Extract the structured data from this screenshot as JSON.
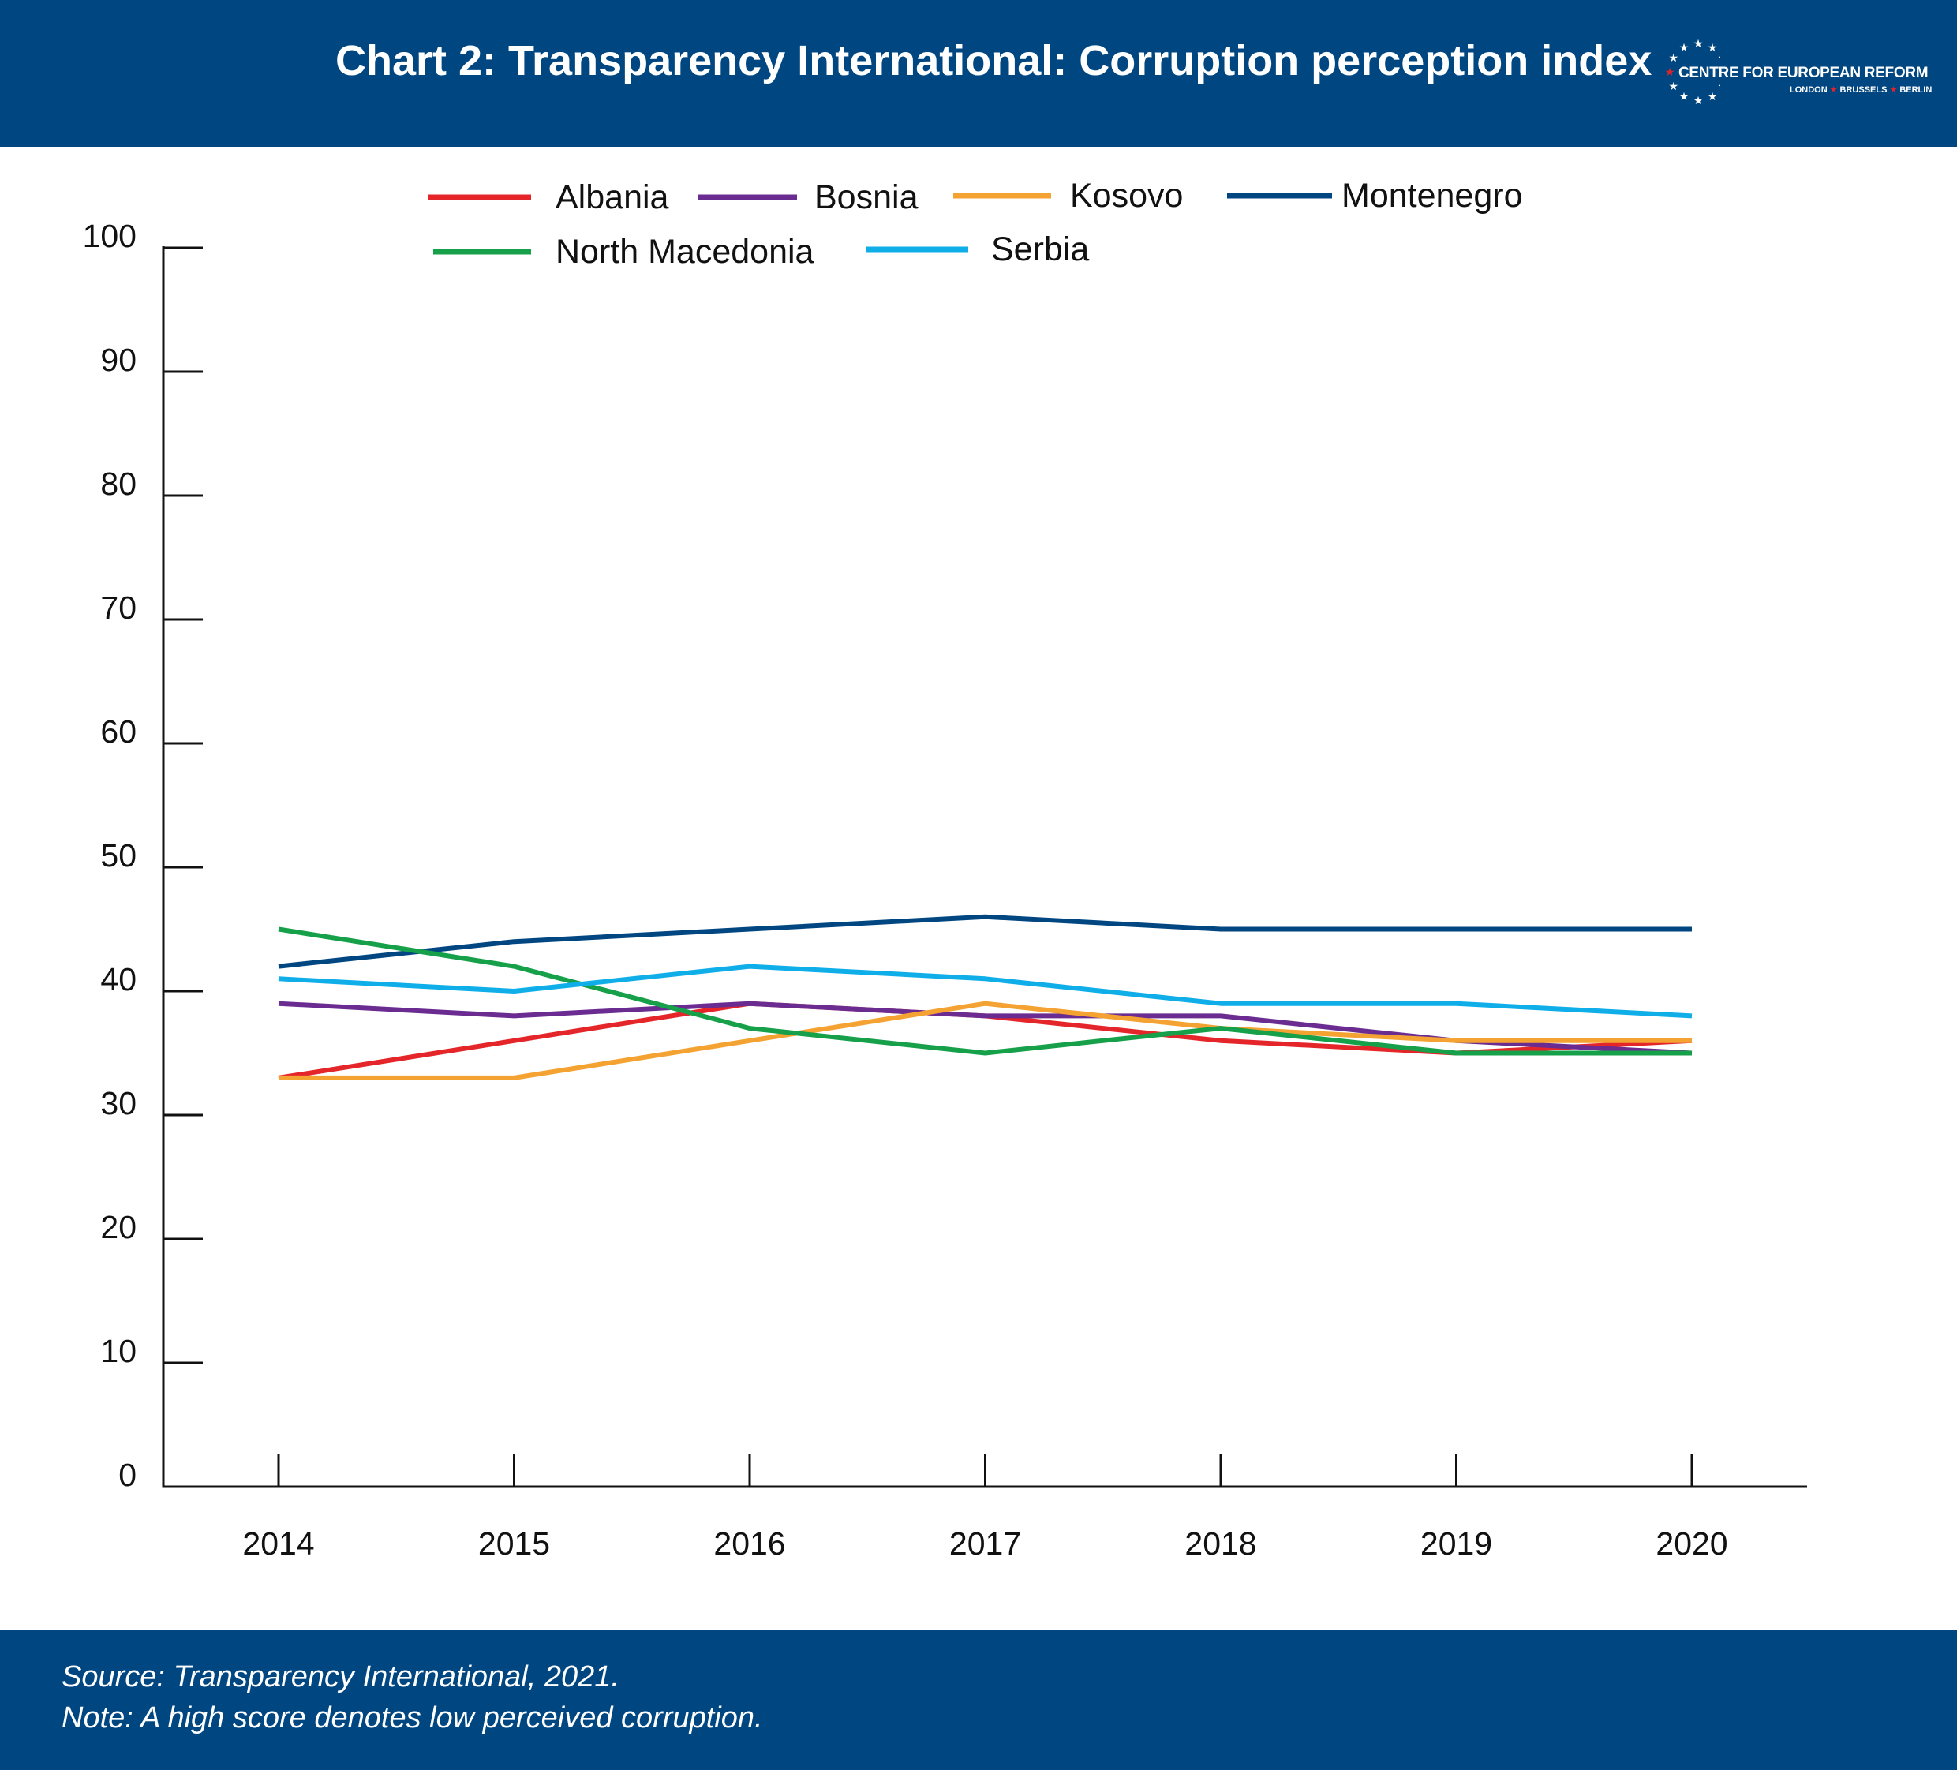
{
  "header": {
    "title": "Chart 2: Transparency International: Corruption perception index",
    "logo": {
      "name": "CENTRE FOR EUROPEAN REFORM",
      "cities": [
        "LONDON",
        "BRUSSELS",
        "BERLIN"
      ],
      "icon": "star-ring-icon"
    },
    "background_color": "#004681"
  },
  "footer": {
    "source": "Source: Transparency International, 2021.",
    "note": "Note: A high score denotes low perceived corruption."
  },
  "chart_data": {
    "type": "line",
    "categories": [
      "2014",
      "2015",
      "2016",
      "2017",
      "2018",
      "2019",
      "2020"
    ],
    "series": [
      {
        "name": "Albania",
        "color": "#e4262a",
        "values": [
          33,
          36,
          39,
          38,
          36,
          35,
          36
        ]
      },
      {
        "name": "Bosnia",
        "color": "#6a2c91",
        "values": [
          39,
          38,
          39,
          38,
          38,
          36,
          35
        ]
      },
      {
        "name": "Kosovo",
        "color": "#f4a232",
        "values": [
          33,
          33,
          36,
          39,
          37,
          36,
          36
        ]
      },
      {
        "name": "Montenegro",
        "color": "#004681",
        "values": [
          42,
          44,
          45,
          46,
          45,
          45,
          45
        ]
      },
      {
        "name": "North Macedonia",
        "color": "#16a04a",
        "values": [
          45,
          42,
          37,
          35,
          37,
          35,
          35
        ]
      },
      {
        "name": "Serbia",
        "color": "#0faee8",
        "values": [
          41,
          40,
          42,
          41,
          39,
          39,
          38
        ]
      }
    ],
    "yticks": [
      "0",
      "10",
      "20",
      "30",
      "40",
      "50",
      "60",
      "70",
      "80",
      "90",
      "100"
    ],
    "ylim": [
      0,
      100
    ],
    "title": "Chart 2: Transparency International: Corruption perception index",
    "xlabel": "",
    "ylabel": "",
    "grid": false,
    "legend_position": "top"
  }
}
